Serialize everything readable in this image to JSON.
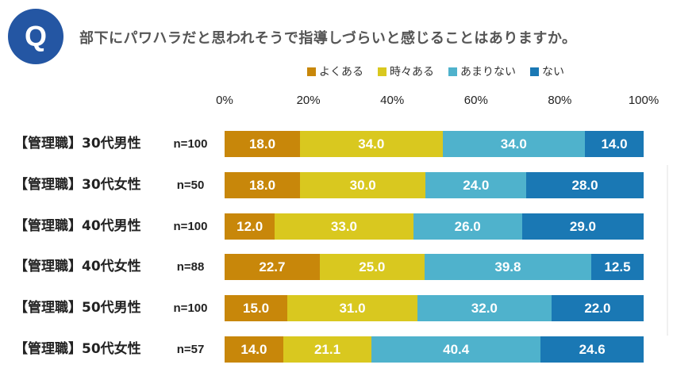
{
  "header": {
    "badge": "Q",
    "question": "部下にパワハラだと思われそうで指導しづらいと感じることはありますか。"
  },
  "chart_data": {
    "type": "bar",
    "orientation": "horizontal-stacked-100",
    "title": "部下にパワハラだと思われそうで指導しづらいと感じることはありますか。",
    "xlabel": "",
    "ylabel": "",
    "xlim": [
      0,
      100
    ],
    "x_ticks": [
      "0%",
      "20%",
      "40%",
      "60%",
      "80%",
      "100%"
    ],
    "legend_position": "top",
    "categories": [
      {
        "label": "【管理職】30代男性",
        "n": "n=100"
      },
      {
        "label": "【管理職】30代女性",
        "n": "n=50"
      },
      {
        "label": "【管理職】40代男性",
        "n": "n=100"
      },
      {
        "label": "【管理職】40代女性",
        "n": "n=88"
      },
      {
        "label": "【管理職】50代男性",
        "n": "n=100"
      },
      {
        "label": "【管理職】50代女性",
        "n": "n=57"
      }
    ],
    "series": [
      {
        "name": "よくある",
        "color": "#c8870a",
        "values": [
          18.0,
          18.0,
          12.0,
          22.7,
          15.0,
          14.0
        ]
      },
      {
        "name": "時々ある",
        "color": "#d9c81f",
        "values": [
          34.0,
          30.0,
          33.0,
          25.0,
          31.0,
          21.1
        ]
      },
      {
        "name": "あまりない",
        "color": "#4fb2cc",
        "values": [
          34.0,
          24.0,
          26.0,
          39.8,
          32.0,
          40.4
        ]
      },
      {
        "name": "ない",
        "color": "#1a78b4",
        "values": [
          14.0,
          28.0,
          29.0,
          12.5,
          22.0,
          24.6
        ]
      }
    ]
  }
}
